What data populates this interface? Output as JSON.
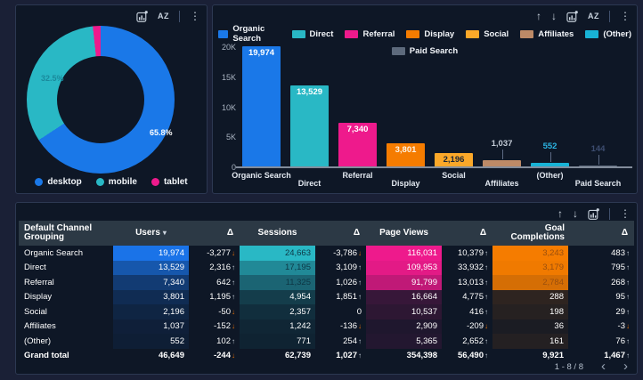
{
  "colors": {
    "page_bg": "#1a2036",
    "panel_bg": "#0e1726",
    "accent_blue": "#1a78e8",
    "accent_teal": "#29b8c5",
    "accent_pink": "#ee1a8c",
    "accent_orange": "#f57c00",
    "accent_amber": "#fba829",
    "accent_tan": "#bd8a67",
    "accent_cyan": "#18b3d6",
    "accent_gray": "#5d6a7c",
    "up": "#c9d2dc",
    "down": "#e8710a"
  },
  "ui": {
    "toolbars": {
      "donut": [
        "chart",
        "az",
        "divider",
        "menu"
      ],
      "bar": [
        "arrow-up",
        "arrow-down",
        "chart",
        "az",
        "divider",
        "menu"
      ],
      "table": [
        "arrow-up",
        "arrow-down",
        "chart",
        "divider",
        "menu"
      ]
    },
    "pagination": "1 - 8 / 8",
    "prev_icon": "‹",
    "next_icon": "›"
  },
  "chart_data": [
    {
      "type": "pie",
      "labels": [
        "desktop",
        "mobile",
        "tablet"
      ],
      "values": [
        65.8,
        32.5,
        1.7
      ],
      "colors": [
        "#1a78e8",
        "#29b8c5",
        "#ee1a8c"
      ],
      "pct_labels": [
        "32.5%",
        "65.8%"
      ],
      "legend_position": "bottom"
    },
    {
      "type": "bar",
      "categories": [
        "Organic Search",
        "Direct",
        "Referral",
        "Display",
        "Social",
        "Affiliates",
        "(Other)",
        "Paid Search"
      ],
      "values": [
        19974,
        13529,
        7340,
        3801,
        2196,
        1037,
        552,
        144
      ],
      "value_labels": [
        "19,974",
        "13,529",
        "7,340",
        "3,801",
        "2,196",
        "1,037",
        "552",
        "144"
      ],
      "colors": [
        "#1a78e8",
        "#29b8c5",
        "#ee1a8c",
        "#f57c00",
        "#fba829",
        "#bd8a67",
        "#18b3d6",
        "#5d6a7c"
      ],
      "label_colors": [
        "#ffffff",
        "#ffffff",
        "#ffffff",
        "#fdf3e4",
        "#1c2636",
        "#c3cbd6",
        "#2bb4e2",
        "#3d4d70"
      ],
      "ylim": [
        0,
        20000
      ],
      "yticks": [
        "20K",
        "15K",
        "10K",
        "5K",
        "0"
      ],
      "legend_position": "top",
      "grid": false
    },
    {
      "type": "table",
      "columns": [
        {
          "label": "Default Channel Grouping",
          "kind": "label"
        },
        {
          "label": "Users",
          "kind": "heat",
          "color": "#1a73e8",
          "sorted": true
        },
        {
          "label": "Δ",
          "kind": "delta"
        },
        {
          "label": "Sessions",
          "kind": "heat",
          "color": "#29b8c5",
          "dark_text": {
            "threshold": 0.4,
            "color": "#0d3644"
          }
        },
        {
          "label": "Δ",
          "kind": "delta"
        },
        {
          "label": "Page Views",
          "kind": "heat",
          "color": "#ee1a8c"
        },
        {
          "label": "Δ",
          "kind": "delta"
        },
        {
          "label": "Goal Completions",
          "kind": "heat",
          "color": "#f57c00",
          "dark_text": {
            "threshold": 0.8,
            "color": "#9a4f0e"
          }
        },
        {
          "label": "Δ",
          "kind": "delta"
        }
      ],
      "rows": [
        {
          "label": "Organic Search",
          "total": false,
          "cells": [
            {
              "v": "19,974",
              "i": 1.0
            },
            {
              "v": "-3,277",
              "dir": "down"
            },
            {
              "v": "24,663",
              "i": 1.0
            },
            {
              "v": "-3,786",
              "dir": "down"
            },
            {
              "v": "116,031",
              "i": 1.0
            },
            {
              "v": "10,379",
              "dir": "up"
            },
            {
              "v": "3,243",
              "i": 1.0
            },
            {
              "v": "483",
              "dir": "up"
            }
          ]
        },
        {
          "label": "Direct",
          "total": false,
          "cells": [
            {
              "v": "13,529",
              "i": 0.68
            },
            {
              "v": "2,316",
              "dir": "up"
            },
            {
              "v": "17,195",
              "i": 0.7
            },
            {
              "v": "3,109",
              "dir": "up"
            },
            {
              "v": "109,953",
              "i": 0.95
            },
            {
              "v": "33,932",
              "dir": "up"
            },
            {
              "v": "3,179",
              "i": 0.98
            },
            {
              "v": "795",
              "dir": "up"
            }
          ]
        },
        {
          "label": "Referral",
          "total": false,
          "cells": [
            {
              "v": "7,340",
              "i": 0.37
            },
            {
              "v": "642",
              "dir": "up"
            },
            {
              "v": "11,325",
              "i": 0.46
            },
            {
              "v": "1,026",
              "dir": "up"
            },
            {
              "v": "91,799",
              "i": 0.79
            },
            {
              "v": "13,013",
              "dir": "up"
            },
            {
              "v": "2,784",
              "i": 0.86
            },
            {
              "v": "268",
              "dir": "up"
            }
          ]
        },
        {
          "label": "Display",
          "total": false,
          "cells": [
            {
              "v": "3,801",
              "i": 0.19
            },
            {
              "v": "1,195",
              "dir": "up"
            },
            {
              "v": "4,954",
              "i": 0.2
            },
            {
              "v": "1,851",
              "dir": "up"
            },
            {
              "v": "16,664",
              "i": 0.14
            },
            {
              "v": "4,775",
              "dir": "up"
            },
            {
              "v": "288",
              "i": 0.09
            },
            {
              "v": "95",
              "dir": "up"
            }
          ]
        },
        {
          "label": "Social",
          "total": false,
          "cells": [
            {
              "v": "2,196",
              "i": 0.11
            },
            {
              "v": "-50",
              "dir": "down"
            },
            {
              "v": "2,357",
              "i": 0.1
            },
            {
              "v": "0"
            },
            {
              "v": "10,537",
              "i": 0.09
            },
            {
              "v": "416",
              "dir": "up"
            },
            {
              "v": "198",
              "i": 0.06
            },
            {
              "v": "29",
              "dir": "up"
            }
          ]
        },
        {
          "label": "Affiliates",
          "total": false,
          "cells": [
            {
              "v": "1,037",
              "i": 0.05
            },
            {
              "v": "-152",
              "dir": "down"
            },
            {
              "v": "1,242",
              "i": 0.05
            },
            {
              "v": "-136",
              "dir": "down"
            },
            {
              "v": "2,909",
              "i": 0.03
            },
            {
              "v": "-209",
              "dir": "down"
            },
            {
              "v": "36",
              "i": 0.01
            },
            {
              "v": "-3",
              "dir": "down"
            }
          ]
        },
        {
          "label": "(Other)",
          "total": false,
          "cells": [
            {
              "v": "552",
              "i": 0.03
            },
            {
              "v": "102",
              "dir": "up"
            },
            {
              "v": "771",
              "i": 0.03
            },
            {
              "v": "254",
              "dir": "up"
            },
            {
              "v": "5,365",
              "i": 0.05
            },
            {
              "v": "2,652",
              "dir": "up"
            },
            {
              "v": "161",
              "i": 0.05
            },
            {
              "v": "76",
              "dir": "up"
            }
          ]
        },
        {
          "label": "Grand total",
          "total": true,
          "cells": [
            {
              "v": "46,649"
            },
            {
              "v": "-244",
              "dir": "down"
            },
            {
              "v": "62,739"
            },
            {
              "v": "1,027",
              "dir": "up"
            },
            {
              "v": "354,398"
            },
            {
              "v": "56,490",
              "dir": "up"
            },
            {
              "v": "9,921"
            },
            {
              "v": "1,467",
              "dir": "up"
            }
          ]
        }
      ]
    }
  ]
}
